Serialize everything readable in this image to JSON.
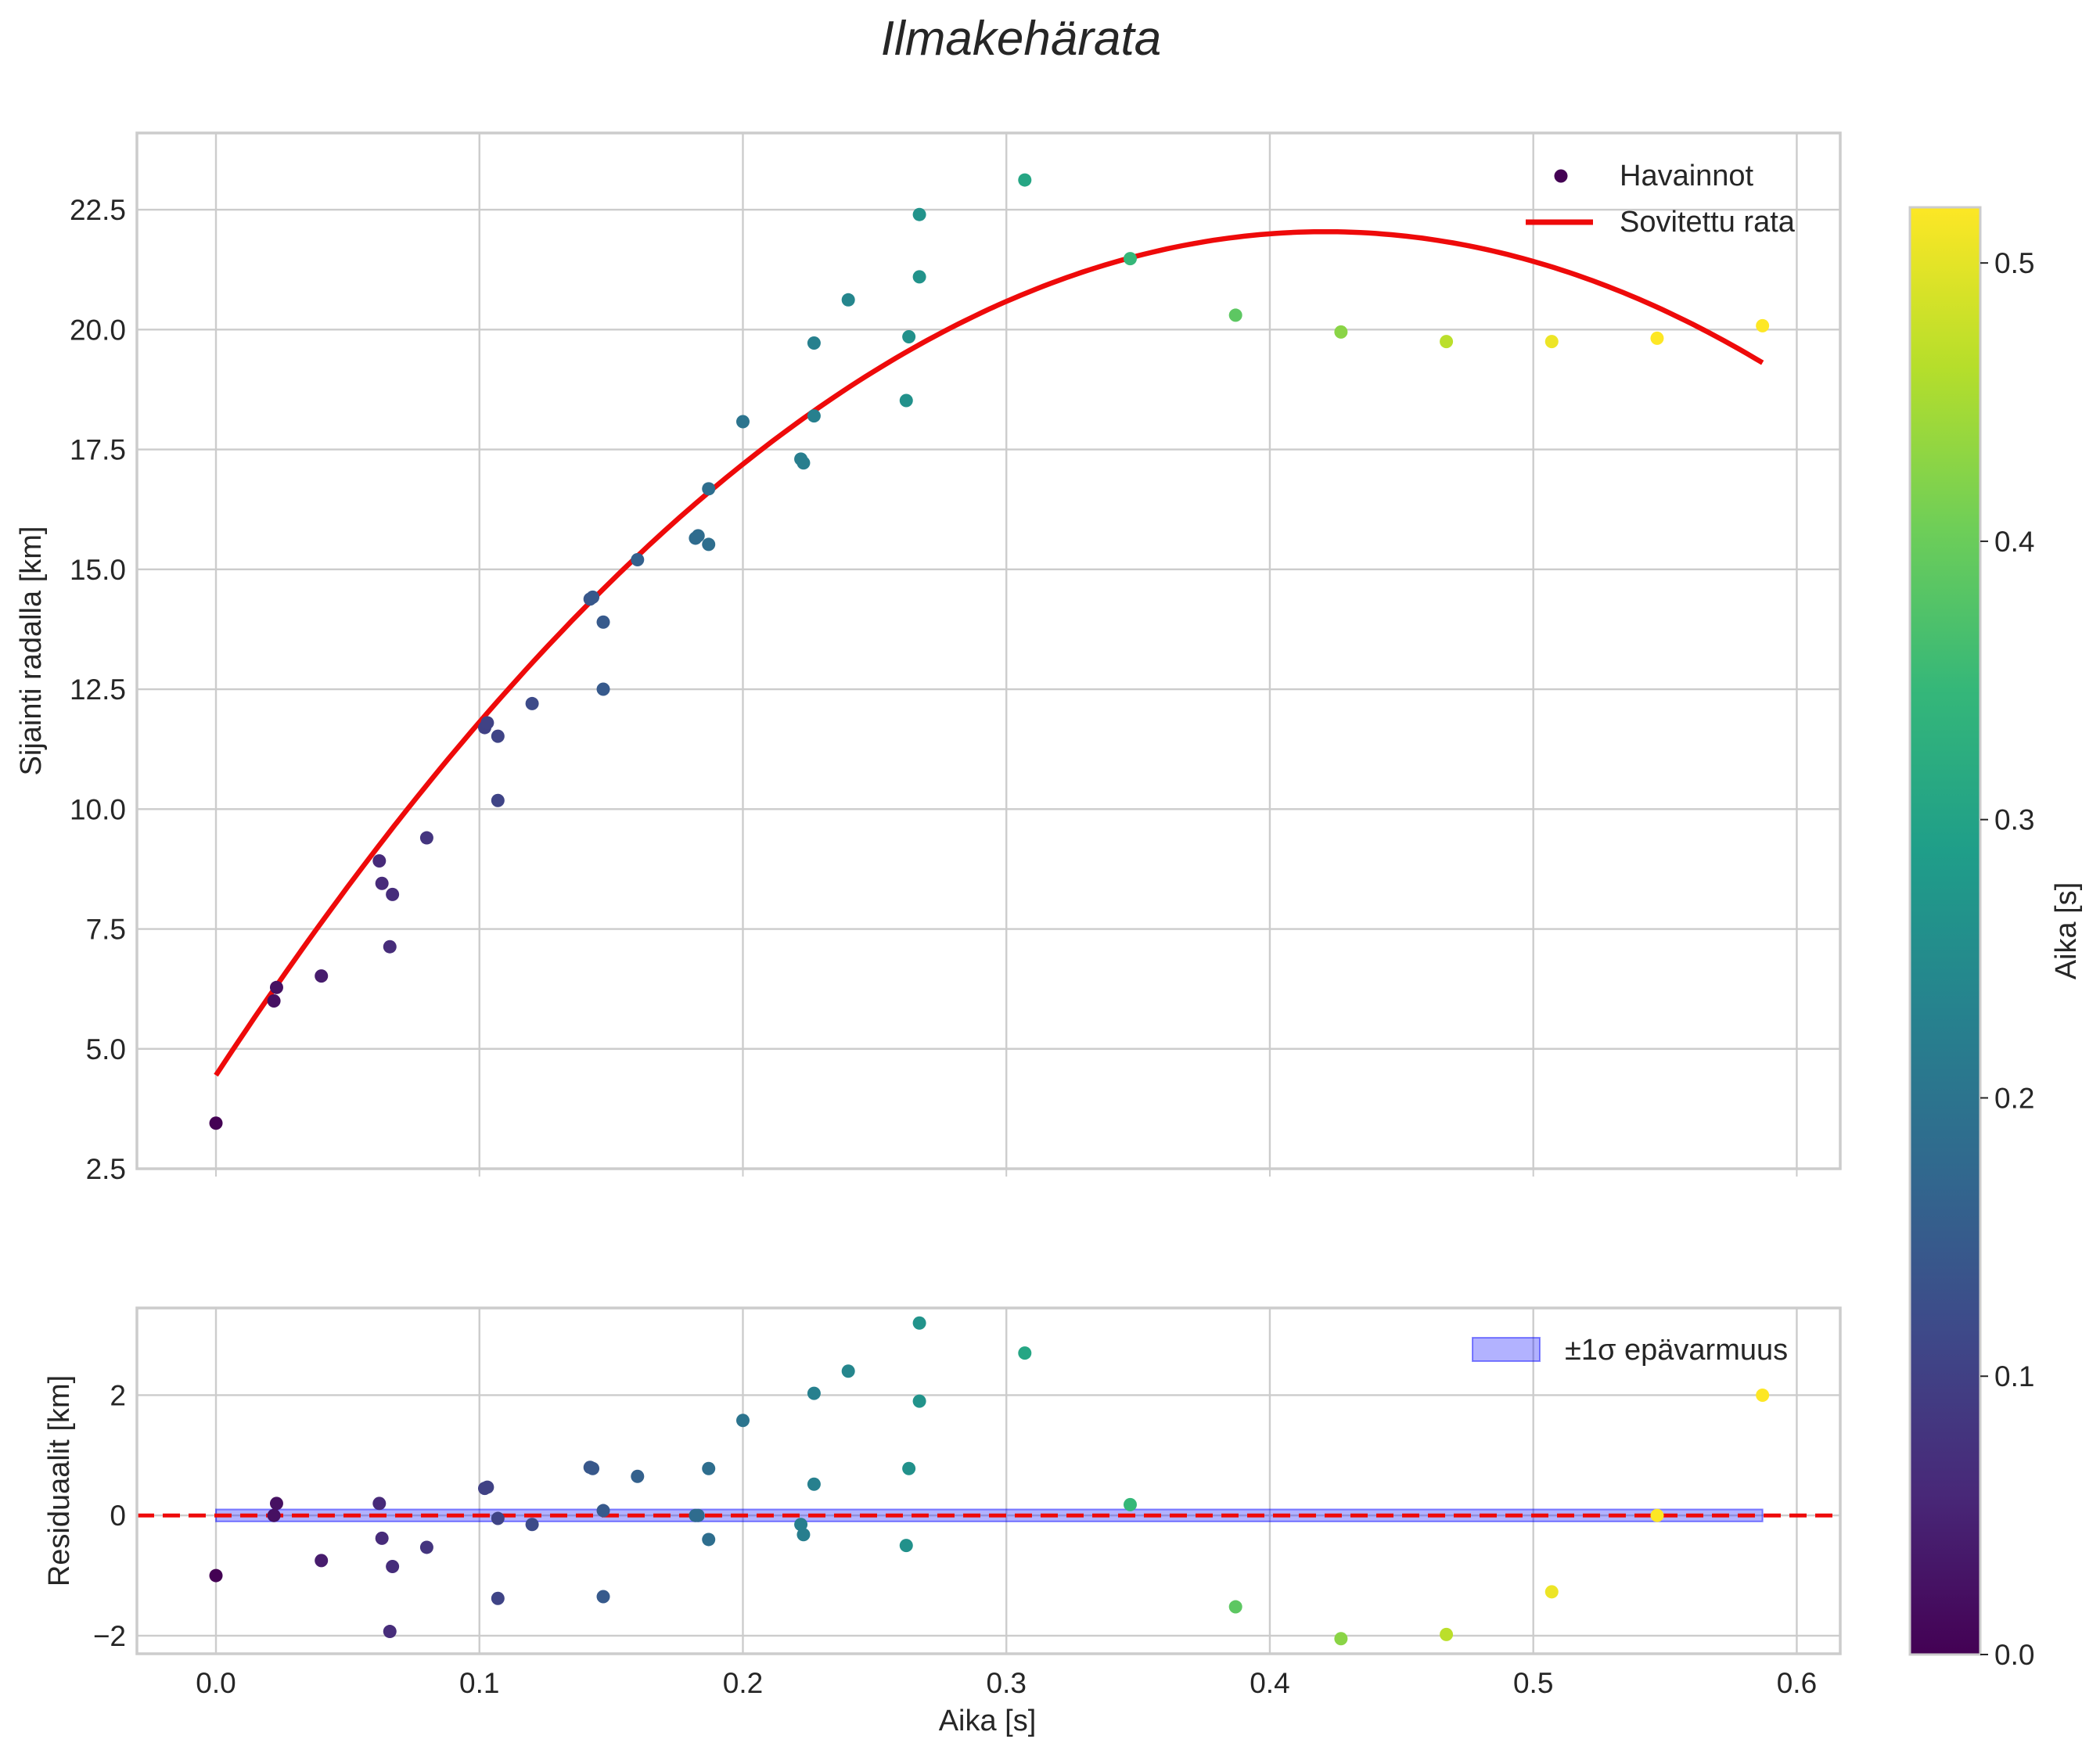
{
  "chart_data": [
    {
      "type": "scatter",
      "title": "Ilmakehärata",
      "xlabel": "",
      "ylabel": "Sijainti radalla [km]",
      "xlim": [
        -0.03,
        0.6165
      ],
      "ylim": [
        2.5,
        24.1
      ],
      "xticks": [
        "0.0",
        "0.1",
        "0.2",
        "0.3",
        "0.4",
        "0.5",
        "0.6"
      ],
      "yticks": [
        "2.5",
        "5.0",
        "7.5",
        "10.0",
        "12.5",
        "15.0",
        "17.5",
        "20.0",
        "22.5"
      ],
      "legend": {
        "position": "top-right",
        "scatter_label": "Havainnot",
        "line_label": "Sovitettu rata"
      },
      "fit_line": {
        "color": "#ee0a0a",
        "t_start": 0.0,
        "t_end": 0.587,
        "a": 4.45,
        "b": 83.56,
        "c": -99.23
      },
      "points": [
        {
          "t": 0.0,
          "y": 3.45
        },
        {
          "t": 0.022,
          "y": 6.0
        },
        {
          "t": 0.023,
          "y": 6.28
        },
        {
          "t": 0.04,
          "y": 6.52
        },
        {
          "t": 0.062,
          "y": 8.92
        },
        {
          "t": 0.063,
          "y": 8.45
        },
        {
          "t": 0.066,
          "y": 7.13
        },
        {
          "t": 0.067,
          "y": 8.22
        },
        {
          "t": 0.08,
          "y": 9.4
        },
        {
          "t": 0.102,
          "y": 11.7
        },
        {
          "t": 0.103,
          "y": 11.8
        },
        {
          "t": 0.107,
          "y": 10.18
        },
        {
          "t": 0.107,
          "y": 11.52
        },
        {
          "t": 0.12,
          "y": 12.2
        },
        {
          "t": 0.142,
          "y": 14.38
        },
        {
          "t": 0.143,
          "y": 14.42
        },
        {
          "t": 0.147,
          "y": 13.9
        },
        {
          "t": 0.147,
          "y": 12.5
        },
        {
          "t": 0.16,
          "y": 15.2
        },
        {
          "t": 0.182,
          "y": 15.65
        },
        {
          "t": 0.183,
          "y": 15.7
        },
        {
          "t": 0.187,
          "y": 15.52
        },
        {
          "t": 0.187,
          "y": 16.68
        },
        {
          "t": 0.2,
          "y": 18.08
        },
        {
          "t": 0.222,
          "y": 17.3
        },
        {
          "t": 0.223,
          "y": 17.22
        },
        {
          "t": 0.227,
          "y": 19.72
        },
        {
          "t": 0.227,
          "y": 18.2
        },
        {
          "t": 0.24,
          "y": 20.62
        },
        {
          "t": 0.262,
          "y": 18.52
        },
        {
          "t": 0.263,
          "y": 19.85
        },
        {
          "t": 0.267,
          "y": 21.1
        },
        {
          "t": 0.267,
          "y": 22.4
        },
        {
          "t": 0.307,
          "y": 23.12
        },
        {
          "t": 0.347,
          "y": 21.48
        },
        {
          "t": 0.387,
          "y": 20.3
        },
        {
          "t": 0.427,
          "y": 19.95
        },
        {
          "t": 0.467,
          "y": 19.75
        },
        {
          "t": 0.507,
          "y": 19.75
        },
        {
          "t": 0.547,
          "y": 19.82
        },
        {
          "t": 0.587,
          "y": 20.08
        }
      ]
    },
    {
      "type": "scatter",
      "title": "",
      "xlabel": "Aika [s]",
      "ylabel": "Residuaalit [km]",
      "xlim": [
        -0.03,
        0.6165
      ],
      "ylim": [
        -2.3,
        3.45
      ],
      "xticks": [
        "0.0",
        "0.1",
        "0.2",
        "0.3",
        "0.4",
        "0.5",
        "0.6"
      ],
      "yticks": [
        "−2",
        "0",
        "2"
      ],
      "legend": {
        "position": "top-right",
        "band_label": "±1σ epävarmuus"
      },
      "band": {
        "color": "#0000ff",
        "alpha": 0.3,
        "halfwidth": 0.1
      },
      "zero_line": {
        "color": "#ee0a0a",
        "style": "dashed"
      },
      "points": [
        {
          "t": 0.0,
          "r": -1.0
        },
        {
          "t": 0.022,
          "r": 0.0
        },
        {
          "t": 0.023,
          "r": 0.2
        },
        {
          "t": 0.04,
          "r": -0.75
        },
        {
          "t": 0.062,
          "r": 0.2
        },
        {
          "t": 0.063,
          "r": -0.38
        },
        {
          "t": 0.066,
          "r": -1.93
        },
        {
          "t": 0.067,
          "r": -0.85
        },
        {
          "t": 0.08,
          "r": -0.53
        },
        {
          "t": 0.102,
          "r": 0.45
        },
        {
          "t": 0.103,
          "r": 0.47
        },
        {
          "t": 0.107,
          "r": -1.38
        },
        {
          "t": 0.107,
          "r": -0.05
        },
        {
          "t": 0.12,
          "r": -0.15
        },
        {
          "t": 0.142,
          "r": 0.8
        },
        {
          "t": 0.143,
          "r": 0.78
        },
        {
          "t": 0.147,
          "r": 0.08
        },
        {
          "t": 0.147,
          "r": -1.35
        },
        {
          "t": 0.16,
          "r": 0.65
        },
        {
          "t": 0.182,
          "r": 0.0
        },
        {
          "t": 0.183,
          "r": 0.0
        },
        {
          "t": 0.187,
          "r": -0.4
        },
        {
          "t": 0.187,
          "r": 0.78
        },
        {
          "t": 0.2,
          "r": 1.58
        },
        {
          "t": 0.222,
          "r": -0.15
        },
        {
          "t": 0.223,
          "r": -0.32
        },
        {
          "t": 0.227,
          "r": 2.03
        },
        {
          "t": 0.227,
          "r": 0.52
        },
        {
          "t": 0.24,
          "r": 2.4
        },
        {
          "t": 0.262,
          "r": -0.5
        },
        {
          "t": 0.263,
          "r": 0.78
        },
        {
          "t": 0.267,
          "r": 1.9
        },
        {
          "t": 0.267,
          "r": 3.2
        },
        {
          "t": 0.307,
          "r": 2.7
        },
        {
          "t": 0.347,
          "r": 0.18
        },
        {
          "t": 0.387,
          "r": -1.52
        },
        {
          "t": 0.427,
          "r": -2.05
        },
        {
          "t": 0.467,
          "r": -1.98
        },
        {
          "t": 0.507,
          "r": -1.27
        },
        {
          "t": 0.547,
          "r": 0.0
        },
        {
          "t": 0.587,
          "r": 2.0
        }
      ]
    }
  ],
  "colorbar": {
    "label": "Aika [s]",
    "range": [
      0.0,
      0.52
    ],
    "ticks": [
      "0.0",
      "0.1",
      "0.2",
      "0.3",
      "0.4",
      "0.5"
    ],
    "colormap": "viridis",
    "stops": [
      "#440154",
      "#482878",
      "#3e4989",
      "#31688e",
      "#26828e",
      "#1f9e89",
      "#35b779",
      "#6ece58",
      "#b5de2b",
      "#fde725"
    ]
  }
}
